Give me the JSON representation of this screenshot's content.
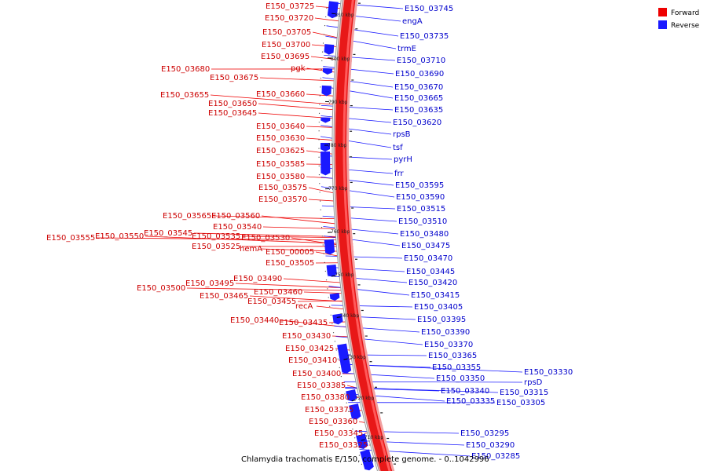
{
  "caption": "Chlamydia trachomatis E/150, complete genome. - 0..1042996",
  "colors": {
    "forward": "#ee0000",
    "reverse": "#1a1aff",
    "ring": "#e81818",
    "forward_label": "#cc0000",
    "reverse_label": "#0000cc"
  },
  "legend": [
    {
      "label": "Forward",
      "color": "#ee0000"
    },
    {
      "label": "Reverse",
      "color": "#1a1aff"
    }
  ],
  "position_ticks": [
    "810 kbp",
    "800 kbp",
    "790 kbp",
    "780 kbp",
    "770 kbp",
    "760 kbp",
    "750 kbp",
    "740 kbp",
    "730 kbp",
    "720 kbp",
    "710 kbp"
  ],
  "forward_labels": [
    "E150_03725",
    "E150_03720",
    "E150_03705",
    "E150_03700",
    "E150_03695",
    "pgk",
    "E150_03680",
    "E150_03675",
    "E150_03655",
    "E150_03660",
    "E150_03650",
    "E150_03645",
    "E150_03640",
    "E150_03630",
    "E150_03625",
    "E150_03585",
    "E150_03580",
    "E150_03575",
    "E150_03570",
    "E150_03565",
    "E150_03560",
    "E150_03540",
    "E150_03545",
    "E150_03550",
    "E150_03555",
    "E150_03535",
    "E150_03530",
    "E150_03525",
    "hemA",
    "E150_00005",
    "E150_03505",
    "E150_03490",
    "E150_03495",
    "E150_03500",
    "E150_03460",
    "E150_03465",
    "E150_03455",
    "recA",
    "E150_03440",
    "E150_03435",
    "E150_03430",
    "E150_03425",
    "E150_03410",
    "E150_03400",
    "E150_03385",
    "E150_03380",
    "E150_03375",
    "E150_03360",
    "E150_03345",
    "E150_03325"
  ],
  "reverse_labels": [
    "E150_03745",
    "engA",
    "E150_03735",
    "trmE",
    "E150_03710",
    "E150_03690",
    "E150_03670",
    "E150_03665",
    "E150_03635",
    "E150_03620",
    "rpsB",
    "tsf",
    "pyrH",
    "frr",
    "E150_03595",
    "E150_03590",
    "E150_03515",
    "E150_03510",
    "E150_03480",
    "E150_03475",
    "E150_03470",
    "E150_03445",
    "E150_03420",
    "E150_03415",
    "E150_03405",
    "E150_03395",
    "E150_03390",
    "E150_03370",
    "E150_03365",
    "E150_03355",
    "E150_03350",
    "E150_03330",
    "rpsD",
    "E150_03340",
    "E150_03315",
    "E150_03335",
    "E150_03305",
    "E150_03295",
    "E150_03290",
    "E150_03285"
  ]
}
